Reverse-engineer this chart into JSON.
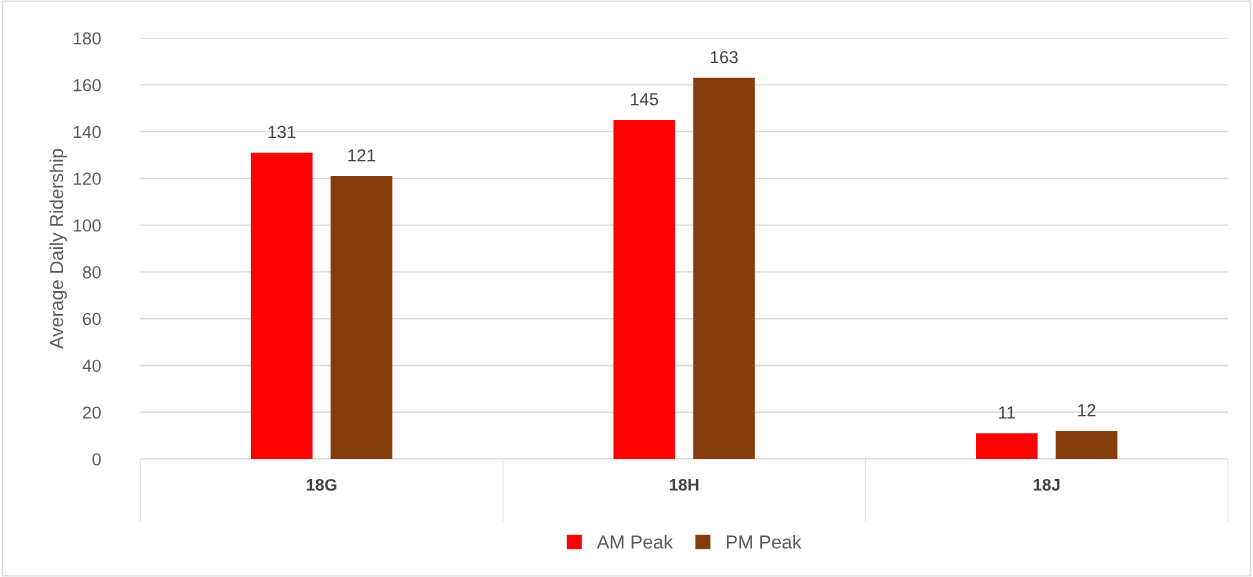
{
  "chart_data": {
    "type": "bar",
    "ylabel": "Average Daily Ridership",
    "categories": [
      "18G",
      "18H",
      "18J"
    ],
    "series": [
      {
        "name": "AM Peak",
        "color": "#ff0000",
        "values": [
          131,
          145,
          11
        ]
      },
      {
        "name": "PM Peak",
        "color": "#843c0c",
        "values": [
          121,
          163,
          12
        ]
      }
    ],
    "ylim": [
      0,
      180
    ],
    "yticks": [
      0,
      20,
      40,
      60,
      80,
      100,
      120,
      140,
      160,
      180
    ],
    "grid": "y",
    "legend": "bottom",
    "data_labels": true
  }
}
